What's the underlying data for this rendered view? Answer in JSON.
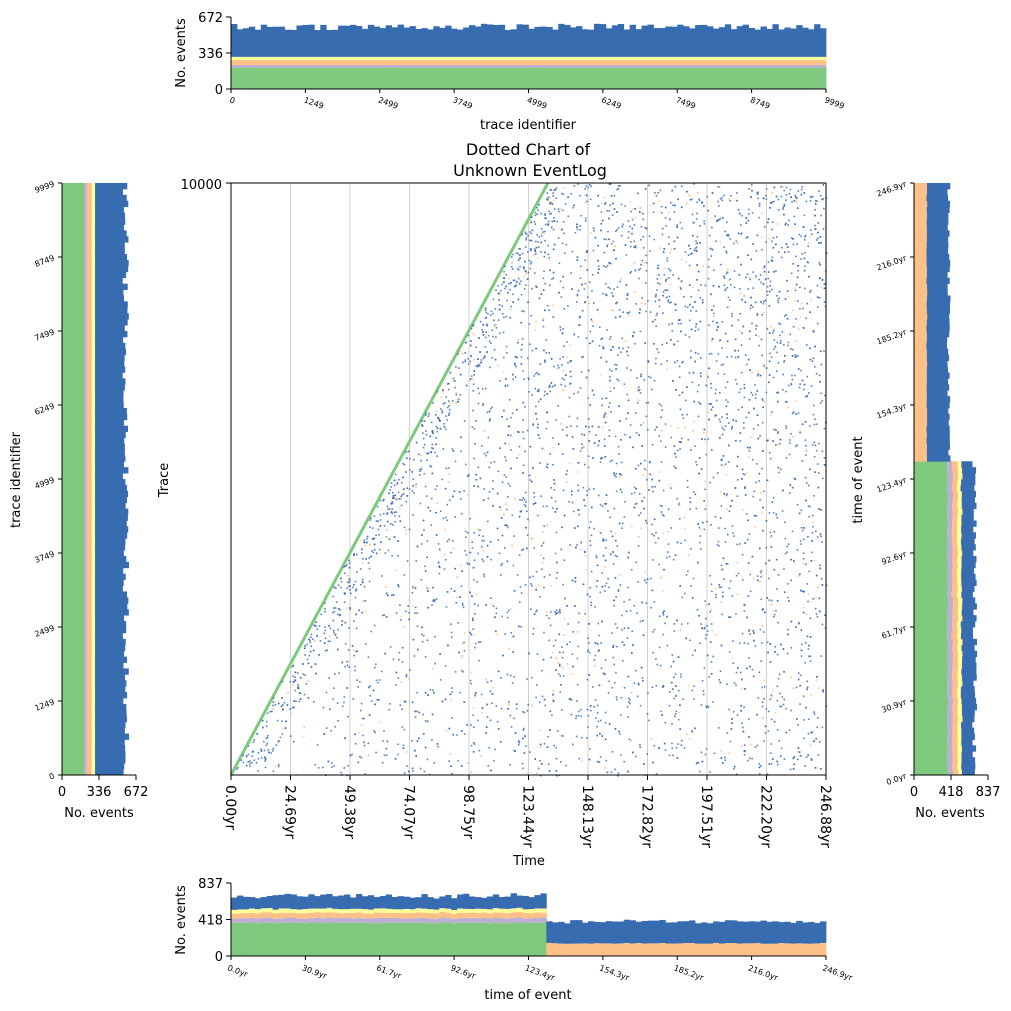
{
  "main": {
    "title_line1": "Dotted Chart of",
    "title_line2": "Unknown EventLog",
    "xlabel": "Time",
    "ylabel": "Trace",
    "ytick_top": "10000",
    "xticks": [
      "0.00yr",
      "24.69yr",
      "49.38yr",
      "74.07yr",
      "98.75yr",
      "123.44yr",
      "148.13yr",
      "172.82yr",
      "197.51yr",
      "222.20yr",
      "246.88yr"
    ],
    "xlim": [
      0,
      246.88
    ],
    "ylim": [
      0,
      10000
    ]
  },
  "top_hist": {
    "xlabel": "trace identifier",
    "ylabel": "No. events",
    "yticks": [
      "0",
      "336",
      "672"
    ],
    "xticks": [
      "0",
      "1249",
      "2499",
      "3749",
      "4999",
      "6249",
      "7499",
      "8749",
      "9999"
    ]
  },
  "left_hist": {
    "xlabel": "No. events",
    "ylabel": "trace identifier",
    "xticks": [
      "0",
      "336",
      "672"
    ],
    "yticks": [
      "0",
      "1249",
      "2499",
      "3749",
      "4999",
      "6249",
      "7499",
      "8749",
      "9999"
    ]
  },
  "right_hist": {
    "xlabel": "No. events",
    "ylabel": "time of event",
    "xticks": [
      "0",
      "418",
      "837"
    ],
    "yticks": [
      "0.0yr",
      "30.9yr",
      "61.7yr",
      "92.6yr",
      "123.4yr",
      "154.3yr",
      "185.2yr",
      "216.0yr",
      "246.9yr"
    ]
  },
  "bottom_hist": {
    "xlabel": "time of event",
    "ylabel": "No. events",
    "yticks": [
      "0",
      "418",
      "837"
    ],
    "xticks": [
      "0.0yr",
      "30.9yr",
      "61.7yr",
      "92.6yr",
      "123.4yr",
      "154.3yr",
      "185.2yr",
      "216.0yr",
      "246.9yr"
    ]
  },
  "chart_data": {
    "type": "scatter",
    "series_colors": [
      "#7fc97f",
      "#beaed4",
      "#fdc086",
      "#ffff99",
      "#386cb0"
    ],
    "dotted": {
      "x_unit": "yr",
      "trace_range": [
        0,
        9999
      ],
      "start_diagonal": {
        "x": [
          0,
          131.5
        ],
        "y": [
          0,
          10000
        ],
        "color": "#7fc97f"
      },
      "point_colors": [
        "#386cb0",
        "#fdc086"
      ]
    },
    "trace_histogram": {
      "bins": 100,
      "max": 672,
      "stack": [
        {
          "color": "#7fc97f",
          "value": 200
        },
        {
          "color": "#beaed4",
          "value": 25
        },
        {
          "color": "#fdc086",
          "value": 45
        },
        {
          "color": "#ffff99",
          "value": 30
        },
        {
          "color": "#386cb0",
          "mean": 280,
          "jitter": 30
        }
      ]
    },
    "time_histogram": {
      "bins": 100,
      "max": 837,
      "split_at": 131.5,
      "before_split": [
        {
          "color": "#7fc97f",
          "value": 380
        },
        {
          "color": "#beaed4",
          "value": 55
        },
        {
          "color": "#fdc086",
          "value": 60
        },
        {
          "color": "#ffff99",
          "value": 45
        },
        {
          "color": "#386cb0",
          "mean": 150,
          "jitter": 25
        }
      ],
      "after_split": [
        {
          "color": "#fdc086",
          "value": 145
        },
        {
          "color": "#386cb0",
          "mean": 250,
          "jitter": 20
        }
      ]
    }
  }
}
